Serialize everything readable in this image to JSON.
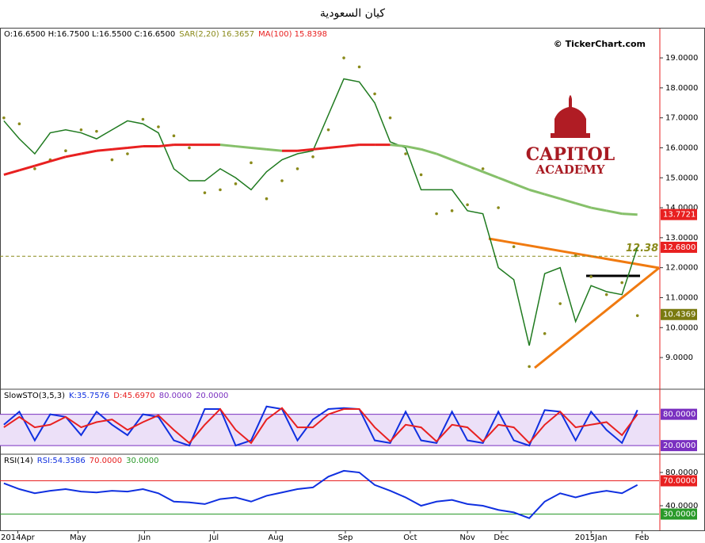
{
  "chart_data": [
    {
      "type": "line",
      "title": "كيان السعودية",
      "ohlc_label": "O:16.6500 H:16.7500 L:16.5500 C:16.6500",
      "watermark": "© TickerChart.com",
      "logo": [
        "CAPITOL",
        "ACADEMY"
      ],
      "x": [
        0,
        1,
        2,
        3,
        4,
        5,
        6,
        7,
        8,
        9,
        10,
        11,
        12,
        13,
        14,
        15,
        16,
        17,
        18,
        19,
        20,
        21,
        22,
        23,
        24,
        25,
        26,
        27,
        28,
        29,
        30,
        31,
        32,
        33,
        34,
        35,
        36,
        37,
        38,
        39,
        40,
        41
      ],
      "xlim": [
        -0.25,
        42.4
      ],
      "values": [
        16.9,
        16.3,
        15.8,
        16.5,
        16.6,
        16.5,
        16.3,
        16.6,
        16.9,
        16.8,
        16.5,
        15.3,
        14.9,
        14.9,
        15.3,
        15.0,
        14.6,
        15.2,
        15.6,
        15.8,
        15.9,
        17.1,
        18.3,
        18.2,
        17.5,
        16.2,
        16.0,
        14.6,
        14.6,
        14.6,
        13.9,
        13.8,
        12.0,
        11.6,
        9.4,
        11.8,
        12.0,
        10.2,
        11.4,
        11.2,
        11.1,
        12.68
      ],
      "color": "#1f7a1f",
      "series": [
        {
          "name": "SAR(2,20) 16.3657",
          "color": "#8a8a1a",
          "style": "dots",
          "values": [
            17.0,
            16.8,
            15.3,
            15.6,
            15.9,
            16.6,
            16.55,
            15.6,
            15.8,
            16.95,
            16.7,
            16.4,
            16.0,
            14.5,
            14.6,
            14.8,
            15.5,
            14.3,
            14.9,
            15.3,
            15.7,
            16.6,
            19.0,
            18.7,
            17.8,
            17.0,
            15.8,
            15.1,
            13.8,
            13.9,
            14.1,
            15.3,
            14.0,
            12.7,
            8.7,
            9.8,
            10.8,
            12.4,
            11.7,
            11.1,
            11.5,
            10.4
          ]
        },
        {
          "name": "MA(100) 15.8398",
          "color": "#e82020",
          "colors": [
            "#e82020",
            "#86c06a"
          ],
          "style": "line",
          "values": [
            15.1,
            15.25,
            15.4,
            15.55,
            15.7,
            15.8,
            15.9,
            15.95,
            16.0,
            16.05,
            16.05,
            16.1,
            16.1,
            16.1,
            16.1,
            16.05,
            16.0,
            15.95,
            15.9,
            15.9,
            15.95,
            16.0,
            16.05,
            16.1,
            16.1,
            16.1,
            16.05,
            15.95,
            15.8,
            15.6,
            15.4,
            15.2,
            15.0,
            14.8,
            14.6,
            14.45,
            14.3,
            14.15,
            14.0,
            13.9,
            13.8,
            13.77
          ]
        }
      ],
      "ylim": [
        7.97,
        19.98
      ],
      "yticks": [
        {
          "value": 9,
          "label": "9.0000"
        },
        {
          "value": 10,
          "label": "10.0000"
        },
        {
          "value": 11,
          "label": "11.0000"
        },
        {
          "value": 12,
          "label": "12.0000"
        },
        {
          "value": 13,
          "label": "13.0000"
        },
        {
          "value": 14,
          "label": "14.0000"
        },
        {
          "value": 15,
          "label": "15.0000"
        },
        {
          "value": 16,
          "label": "16.0000"
        },
        {
          "value": 17,
          "label": "17.0000"
        },
        {
          "value": 18,
          "label": "18.0000"
        },
        {
          "value": 19,
          "label": "19.0000"
        }
      ],
      "markers": [
        13.7721,
        {
          "value": 12.68,
          "label": "12.6800"
        },
        10.4369
      ],
      "marker_colors": [
        "#e82020",
        "#e82020",
        "#7a7a10"
      ],
      "annotation": {
        "value": 12.38,
        "text": "12.38",
        "color": "#8a8a1a"
      }
    },
    {
      "type": "line",
      "title": "SlowSTO(3,5,3)",
      "series": [
        {
          "name": "K:35.7576",
          "color": "#1030e0",
          "values": [
            60,
            85,
            30,
            80,
            75,
            40,
            85,
            60,
            40,
            80,
            75,
            30,
            20,
            90,
            90,
            20,
            30,
            95,
            90,
            30,
            70,
            90,
            92,
            90,
            30,
            25,
            85,
            30,
            25,
            85,
            30,
            25,
            85,
            30,
            20,
            88,
            85,
            30,
            85,
            50,
            25,
            88
          ]
        },
        {
          "name": "D:45.6970",
          "color": "#e82020",
          "values": [
            55,
            75,
            55,
            60,
            75,
            55,
            65,
            70,
            50,
            65,
            78,
            50,
            25,
            60,
            90,
            50,
            25,
            70,
            92,
            55,
            55,
            80,
            90,
            90,
            55,
            28,
            60,
            55,
            28,
            60,
            55,
            28,
            60,
            55,
            25,
            60,
            85,
            55,
            60,
            65,
            40,
            80
          ]
        }
      ],
      "ylim": [
        5,
        126.5
      ],
      "yticks": [],
      "levels": [
        {
          "value": 80,
          "label": "80.0000",
          "color": "#7a30c0"
        },
        {
          "value": 20,
          "label": "20.0000",
          "color": "#7a30c0"
        }
      ]
    },
    {
      "type": "line",
      "title": "RSI(14)",
      "series": [
        {
          "name": "RSI:54.3586",
          "color": "#1030e0",
          "values": [
            67,
            60,
            55,
            58,
            60,
            57,
            56,
            58,
            57,
            60,
            55,
            45,
            44,
            42,
            48,
            50,
            45,
            52,
            56,
            60,
            62,
            75,
            82,
            80,
            65,
            58,
            50,
            40,
            45,
            47,
            42,
            40,
            35,
            32,
            25,
            45,
            55,
            50,
            55,
            58,
            55,
            65
          ]
        }
      ],
      "ylim": [
        11.4,
        101
      ],
      "yticks": [
        {
          "value": 80,
          "label": "80.0000"
        },
        {
          "value": 40,
          "label": "40.0000"
        }
      ],
      "levels": [
        {
          "value": 70,
          "label": "70.0000",
          "color": "#e82020"
        },
        {
          "value": 30,
          "label": "30.0000",
          "color": "#2a9a2a"
        }
      ],
      "xticks": [
        {
          "value": 0.9,
          "label": "2014Apr"
        },
        {
          "value": 4.8,
          "label": "May"
        },
        {
          "value": 9.1,
          "label": "Jun"
        },
        {
          "value": 13.6,
          "label": "Jul"
        },
        {
          "value": 17.6,
          "label": "Aug"
        },
        {
          "value": 22.1,
          "label": "Sep"
        },
        {
          "value": 26.3,
          "label": "Oct"
        },
        {
          "value": 30.0,
          "label": "Nov"
        },
        {
          "value": 32.2,
          "label": "Dec"
        },
        {
          "value": 38.0,
          "label": "2015Jan"
        },
        {
          "value": 41.3,
          "label": "Feb"
        }
      ]
    }
  ]
}
